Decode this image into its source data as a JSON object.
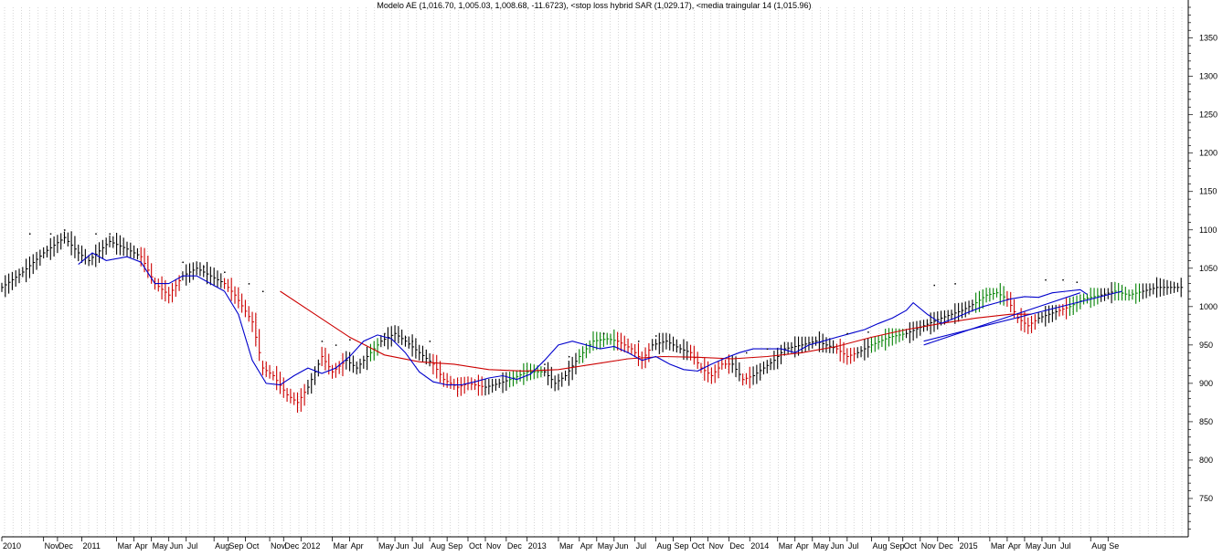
{
  "chart_data": {
    "type": "line",
    "title": "Modelo AE (1,016.70, 1,005.03, 1,008.68, -11.6723), <stop loss hybrid SAR (1,029.17), <media traingular 14 (1,015.96)",
    "xlabel": "",
    "ylabel": "",
    "ylim": [
      700,
      1390
    ],
    "yticks": [
      750,
      800,
      850,
      900,
      950,
      1000,
      1050,
      1100,
      1150,
      1200,
      1250,
      1300,
      1350
    ],
    "x_tick_labels": [
      "2010",
      "Nov",
      "Dec",
      "2011",
      "Mar",
      "Apr",
      "May",
      "Jun",
      "Jul",
      "Aug",
      "Sep",
      "Oct",
      "Nov",
      "Dec",
      "2012",
      "Mar",
      "Apr",
      "May",
      "Jun",
      "Jul",
      "Aug",
      "Sep",
      "Oct",
      "Nov",
      "Dec",
      "2013",
      "Mar",
      "Apr",
      "May",
      "Jun",
      "Jul",
      "Aug",
      "Sep",
      "Oct",
      "Nov",
      "Dec",
      "2014",
      "Mar",
      "Apr",
      "May",
      "Jun",
      "Jul",
      "Aug",
      "Sep",
      "Oct",
      "Nov",
      "Dec",
      "2015",
      "Mar",
      "Apr",
      "May",
      "Jun",
      "Jul",
      "Aug",
      "Se"
    ],
    "grid": true,
    "legend": "none",
    "colors": {
      "up": "#008000",
      "down": "#cc0000",
      "neutral": "#000000",
      "triangular": "#0000cc",
      "longterm": "#cc0000",
      "trendline": "#0000cc",
      "sar": "#000000",
      "grid": "#bbbbbb"
    },
    "anchors_ohlc": [
      [
        0,
        1025,
        "n"
      ],
      [
        6,
        1045,
        "n"
      ],
      [
        12,
        1070,
        "n"
      ],
      [
        18,
        1090,
        "n"
      ],
      [
        22,
        1070,
        "n"
      ],
      [
        25,
        1060,
        "n"
      ],
      [
        31,
        1085,
        "n"
      ],
      [
        36,
        1075,
        "n"
      ],
      [
        40,
        1065,
        "d"
      ],
      [
        44,
        1030,
        "d"
      ],
      [
        48,
        1015,
        "d"
      ],
      [
        52,
        1040,
        "n"
      ],
      [
        56,
        1050,
        "n"
      ],
      [
        60,
        1040,
        "n"
      ],
      [
        64,
        1030,
        "d"
      ],
      [
        67,
        1015,
        "d"
      ],
      [
        72,
        980,
        "d"
      ],
      [
        75,
        920,
        "d"
      ],
      [
        78,
        910,
        "d"
      ],
      [
        82,
        885,
        "d"
      ],
      [
        85,
        875,
        "d"
      ],
      [
        88,
        895,
        "n"
      ],
      [
        92,
        935,
        "d"
      ],
      [
        95,
        915,
        "d"
      ],
      [
        99,
        930,
        "n"
      ],
      [
        102,
        920,
        "n"
      ],
      [
        106,
        940,
        "u"
      ],
      [
        109,
        955,
        "n"
      ],
      [
        113,
        965,
        "n"
      ],
      [
        116,
        955,
        "n"
      ],
      [
        120,
        940,
        "n"
      ],
      [
        124,
        925,
        "d"
      ],
      [
        127,
        905,
        "d"
      ],
      [
        131,
        895,
        "d"
      ],
      [
        134,
        900,
        "d"
      ],
      [
        139,
        895,
        "n"
      ],
      [
        143,
        900,
        "n"
      ],
      [
        146,
        905,
        "u"
      ],
      [
        151,
        915,
        "u"
      ],
      [
        156,
        915,
        "n"
      ],
      [
        159,
        900,
        "n"
      ],
      [
        162,
        910,
        "n"
      ],
      [
        166,
        935,
        "u"
      ],
      [
        170,
        955,
        "u"
      ],
      [
        174,
        958,
        "u"
      ],
      [
        177,
        955,
        "d"
      ],
      [
        181,
        945,
        "d"
      ],
      [
        184,
        930,
        "d"
      ],
      [
        187,
        950,
        "n"
      ],
      [
        191,
        955,
        "n"
      ],
      [
        195,
        945,
        "n"
      ],
      [
        198,
        940,
        "d"
      ],
      [
        201,
        920,
        "d"
      ],
      [
        204,
        910,
        "d"
      ],
      [
        207,
        925,
        "d"
      ],
      [
        210,
        925,
        "n"
      ],
      [
        213,
        905,
        "d"
      ],
      [
        216,
        910,
        "n"
      ],
      [
        219,
        920,
        "n"
      ],
      [
        222,
        930,
        "n"
      ],
      [
        225,
        945,
        "n"
      ],
      [
        230,
        950,
        "n"
      ],
      [
        234,
        955,
        "n"
      ],
      [
        237,
        950,
        "n"
      ],
      [
        240,
        945,
        "d"
      ],
      [
        243,
        935,
        "d"
      ],
      [
        246,
        940,
        "n"
      ],
      [
        250,
        950,
        "u"
      ],
      [
        255,
        960,
        "u"
      ],
      [
        260,
        965,
        "n"
      ],
      [
        265,
        975,
        "n"
      ],
      [
        270,
        985,
        "n"
      ],
      [
        276,
        995,
        "n"
      ],
      [
        280,
        1005,
        "u"
      ],
      [
        283,
        1015,
        "u"
      ],
      [
        286,
        1018,
        "u"
      ],
      [
        289,
        1010,
        "d"
      ],
      [
        292,
        985,
        "d"
      ],
      [
        295,
        975,
        "d"
      ],
      [
        298,
        985,
        "n"
      ],
      [
        301,
        990,
        "n"
      ],
      [
        304,
        995,
        "d"
      ],
      [
        307,
        1000,
        "u"
      ],
      [
        311,
        1010,
        "u"
      ],
      [
        316,
        1015,
        "n"
      ],
      [
        320,
        1020,
        "u"
      ],
      [
        324,
        1015,
        "u"
      ],
      [
        328,
        1020,
        "n"
      ],
      [
        332,
        1025,
        "n"
      ],
      [
        336,
        1025,
        "n"
      ],
      [
        340,
        1025,
        "n"
      ]
    ],
    "triangular_ma": [
      [
        22,
        1055
      ],
      [
        26,
        1070
      ],
      [
        30,
        1060
      ],
      [
        36,
        1065
      ],
      [
        40,
        1058
      ],
      [
        44,
        1030
      ],
      [
        48,
        1030
      ],
      [
        52,
        1040
      ],
      [
        56,
        1040
      ],
      [
        60,
        1030
      ],
      [
        64,
        1020
      ],
      [
        68,
        990
      ],
      [
        72,
        930
      ],
      [
        76,
        900
      ],
      [
        80,
        898
      ],
      [
        84,
        910
      ],
      [
        88,
        920
      ],
      [
        92,
        913
      ],
      [
        96,
        920
      ],
      [
        100,
        935
      ],
      [
        104,
        955
      ],
      [
        108,
        963
      ],
      [
        112,
        958
      ],
      [
        116,
        940
      ],
      [
        120,
        915
      ],
      [
        124,
        902
      ],
      [
        128,
        898
      ],
      [
        132,
        898
      ],
      [
        136,
        902
      ],
      [
        140,
        907
      ],
      [
        144,
        910
      ],
      [
        148,
        905
      ],
      [
        152,
        912
      ],
      [
        156,
        930
      ],
      [
        160,
        950
      ],
      [
        164,
        955
      ],
      [
        168,
        950
      ],
      [
        172,
        945
      ],
      [
        176,
        948
      ],
      [
        180,
        940
      ],
      [
        184,
        930
      ],
      [
        188,
        935
      ],
      [
        192,
        925
      ],
      [
        196,
        918
      ],
      [
        200,
        916
      ],
      [
        204,
        925
      ],
      [
        208,
        933
      ],
      [
        212,
        940
      ],
      [
        216,
        945
      ],
      [
        220,
        945
      ],
      [
        224,
        945
      ],
      [
        228,
        940
      ],
      [
        232,
        950
      ],
      [
        236,
        955
      ],
      [
        240,
        960
      ],
      [
        244,
        965
      ],
      [
        248,
        970
      ],
      [
        252,
        978
      ],
      [
        256,
        985
      ],
      [
        260,
        995
      ],
      [
        262,
        1005
      ],
      [
        266,
        990
      ],
      [
        270,
        978
      ],
      [
        274,
        985
      ],
      [
        278,
        993
      ],
      [
        282,
        1000
      ],
      [
        286,
        1005
      ],
      [
        290,
        1010
      ],
      [
        294,
        1013
      ],
      [
        298,
        1012
      ],
      [
        302,
        1018
      ],
      [
        306,
        1020
      ],
      [
        310,
        1022
      ],
      [
        312,
        1016
      ]
    ],
    "longterm_ma": [
      [
        80,
        1020
      ],
      [
        90,
        990
      ],
      [
        100,
        960
      ],
      [
        110,
        937
      ],
      [
        120,
        928
      ],
      [
        130,
        925
      ],
      [
        140,
        918
      ],
      [
        150,
        916
      ],
      [
        160,
        918
      ],
      [
        170,
        925
      ],
      [
        180,
        932
      ],
      [
        190,
        935
      ],
      [
        200,
        934
      ],
      [
        210,
        932
      ],
      [
        220,
        935
      ],
      [
        230,
        940
      ],
      [
        240,
        948
      ],
      [
        250,
        960
      ],
      [
        260,
        970
      ],
      [
        270,
        978
      ],
      [
        280,
        985
      ],
      [
        290,
        990
      ],
      [
        296,
        990
      ]
    ],
    "trendlines": [
      {
        "x": [
          265,
          322
        ],
        "y": [
          955,
          1020
        ]
      },
      {
        "x": [
          265,
          310
        ],
        "y": [
          950,
          1018
        ]
      }
    ],
    "sar_dots": [
      [
        8,
        1095
      ],
      [
        14,
        1095
      ],
      [
        18,
        1100
      ],
      [
        27,
        1095
      ],
      [
        31,
        1095
      ],
      [
        52,
        1058
      ],
      [
        58,
        1052
      ],
      [
        64,
        1045
      ],
      [
        71,
        1030
      ],
      [
        75,
        1020
      ],
      [
        92,
        955
      ],
      [
        96,
        950
      ],
      [
        100,
        957
      ],
      [
        110,
        965
      ],
      [
        116,
        960
      ],
      [
        118,
        955
      ],
      [
        123,
        955
      ],
      [
        156,
        925
      ],
      [
        163,
        935
      ],
      [
        173,
        965
      ],
      [
        183,
        955
      ],
      [
        188,
        962
      ],
      [
        214,
        940
      ],
      [
        220,
        945
      ],
      [
        243,
        965
      ],
      [
        249,
        967
      ],
      [
        268,
        1028
      ],
      [
        274,
        1030
      ],
      [
        300,
        1035
      ],
      [
        305,
        1035
      ],
      [
        309,
        1032
      ]
    ],
    "x_domain": [
      0,
      340
    ],
    "tick_x_positions": [
      0,
      12,
      16,
      23,
      33,
      38,
      43,
      48,
      53,
      61,
      65,
      70,
      77,
      81,
      86,
      95,
      100,
      108,
      113,
      118,
      123,
      128,
      134,
      139,
      145,
      151,
      160,
      166,
      171,
      176,
      182,
      188,
      193,
      198,
      203,
      209,
      215,
      223,
      228,
      233,
      238,
      243,
      250,
      255,
      259,
      264,
      269,
      275,
      284,
      289,
      294,
      299,
      304,
      313,
      318
    ]
  }
}
